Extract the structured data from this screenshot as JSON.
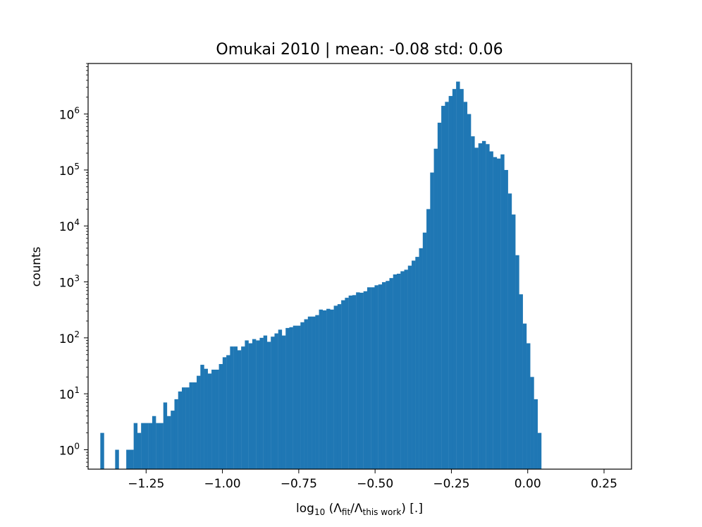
{
  "chart_data": {
    "type": "bar",
    "title": "Omukai 2010 | mean: -0.08 std: 0.06",
    "xlabel": {
      "prefix": "log",
      "base": "10",
      "open": " (Λ",
      "sub1": "fit",
      "mid": "/Λ",
      "sub2": "this work",
      "close": ") [.]"
    },
    "ylabel": "counts",
    "y_scale": "log",
    "xlim": [
      -1.44,
      0.34
    ],
    "ylim": [
      0.45,
      8000000
    ],
    "x_ticks": [
      {
        "value": -1.25,
        "label": "−1.25"
      },
      {
        "value": -1.0,
        "label": "−1.00"
      },
      {
        "value": -0.75,
        "label": "−0.75"
      },
      {
        "value": -0.5,
        "label": "−0.50"
      },
      {
        "value": -0.25,
        "label": "−0.25"
      },
      {
        "value": 0.0,
        "label": "0.00"
      },
      {
        "value": 0.25,
        "label": "0.25"
      }
    ],
    "y_ticks": [
      {
        "value": 1,
        "base": "10",
        "exp": "0"
      },
      {
        "value": 10,
        "base": "10",
        "exp": "1"
      },
      {
        "value": 100,
        "base": "10",
        "exp": "2"
      },
      {
        "value": 1000,
        "base": "10",
        "exp": "3"
      },
      {
        "value": 10000,
        "base": "10",
        "exp": "4"
      },
      {
        "value": 100000,
        "base": "10",
        "exp": "5"
      },
      {
        "value": 1000000,
        "base": "10",
        "exp": "6"
      }
    ],
    "bar_color": "#1f77b4",
    "bin_range": [
      -1.4,
      0.3
    ],
    "bin_width": 0.01214,
    "counts": [
      2,
      0,
      0,
      0,
      1,
      0,
      0,
      1,
      1,
      3,
      2,
      3,
      3,
      3,
      4,
      3,
      3,
      7,
      4,
      5,
      8,
      11,
      13,
      13,
      16,
      16,
      21,
      33,
      28,
      23,
      27,
      27,
      34,
      45,
      49,
      70,
      70,
      60,
      70,
      90,
      80,
      95,
      90,
      100,
      110,
      85,
      105,
      120,
      140,
      110,
      150,
      155,
      165,
      165,
      190,
      215,
      240,
      240,
      255,
      320,
      310,
      330,
      320,
      375,
      400,
      470,
      520,
      570,
      580,
      650,
      640,
      680,
      800,
      800,
      870,
      900,
      990,
      1040,
      1170,
      1360,
      1400,
      1550,
      1650,
      1950,
      2400,
      2800,
      4000,
      7600,
      20000,
      90000,
      240000,
      700000,
      1400000,
      1650000,
      2100000,
      2800000,
      3800000,
      2800000,
      1650000,
      1000000,
      400000,
      250000,
      300000,
      330000,
      290000,
      215000,
      170000,
      160000,
      190000,
      100000,
      38000,
      16000,
      3000,
      600,
      180,
      80,
      20,
      8,
      2
    ]
  }
}
